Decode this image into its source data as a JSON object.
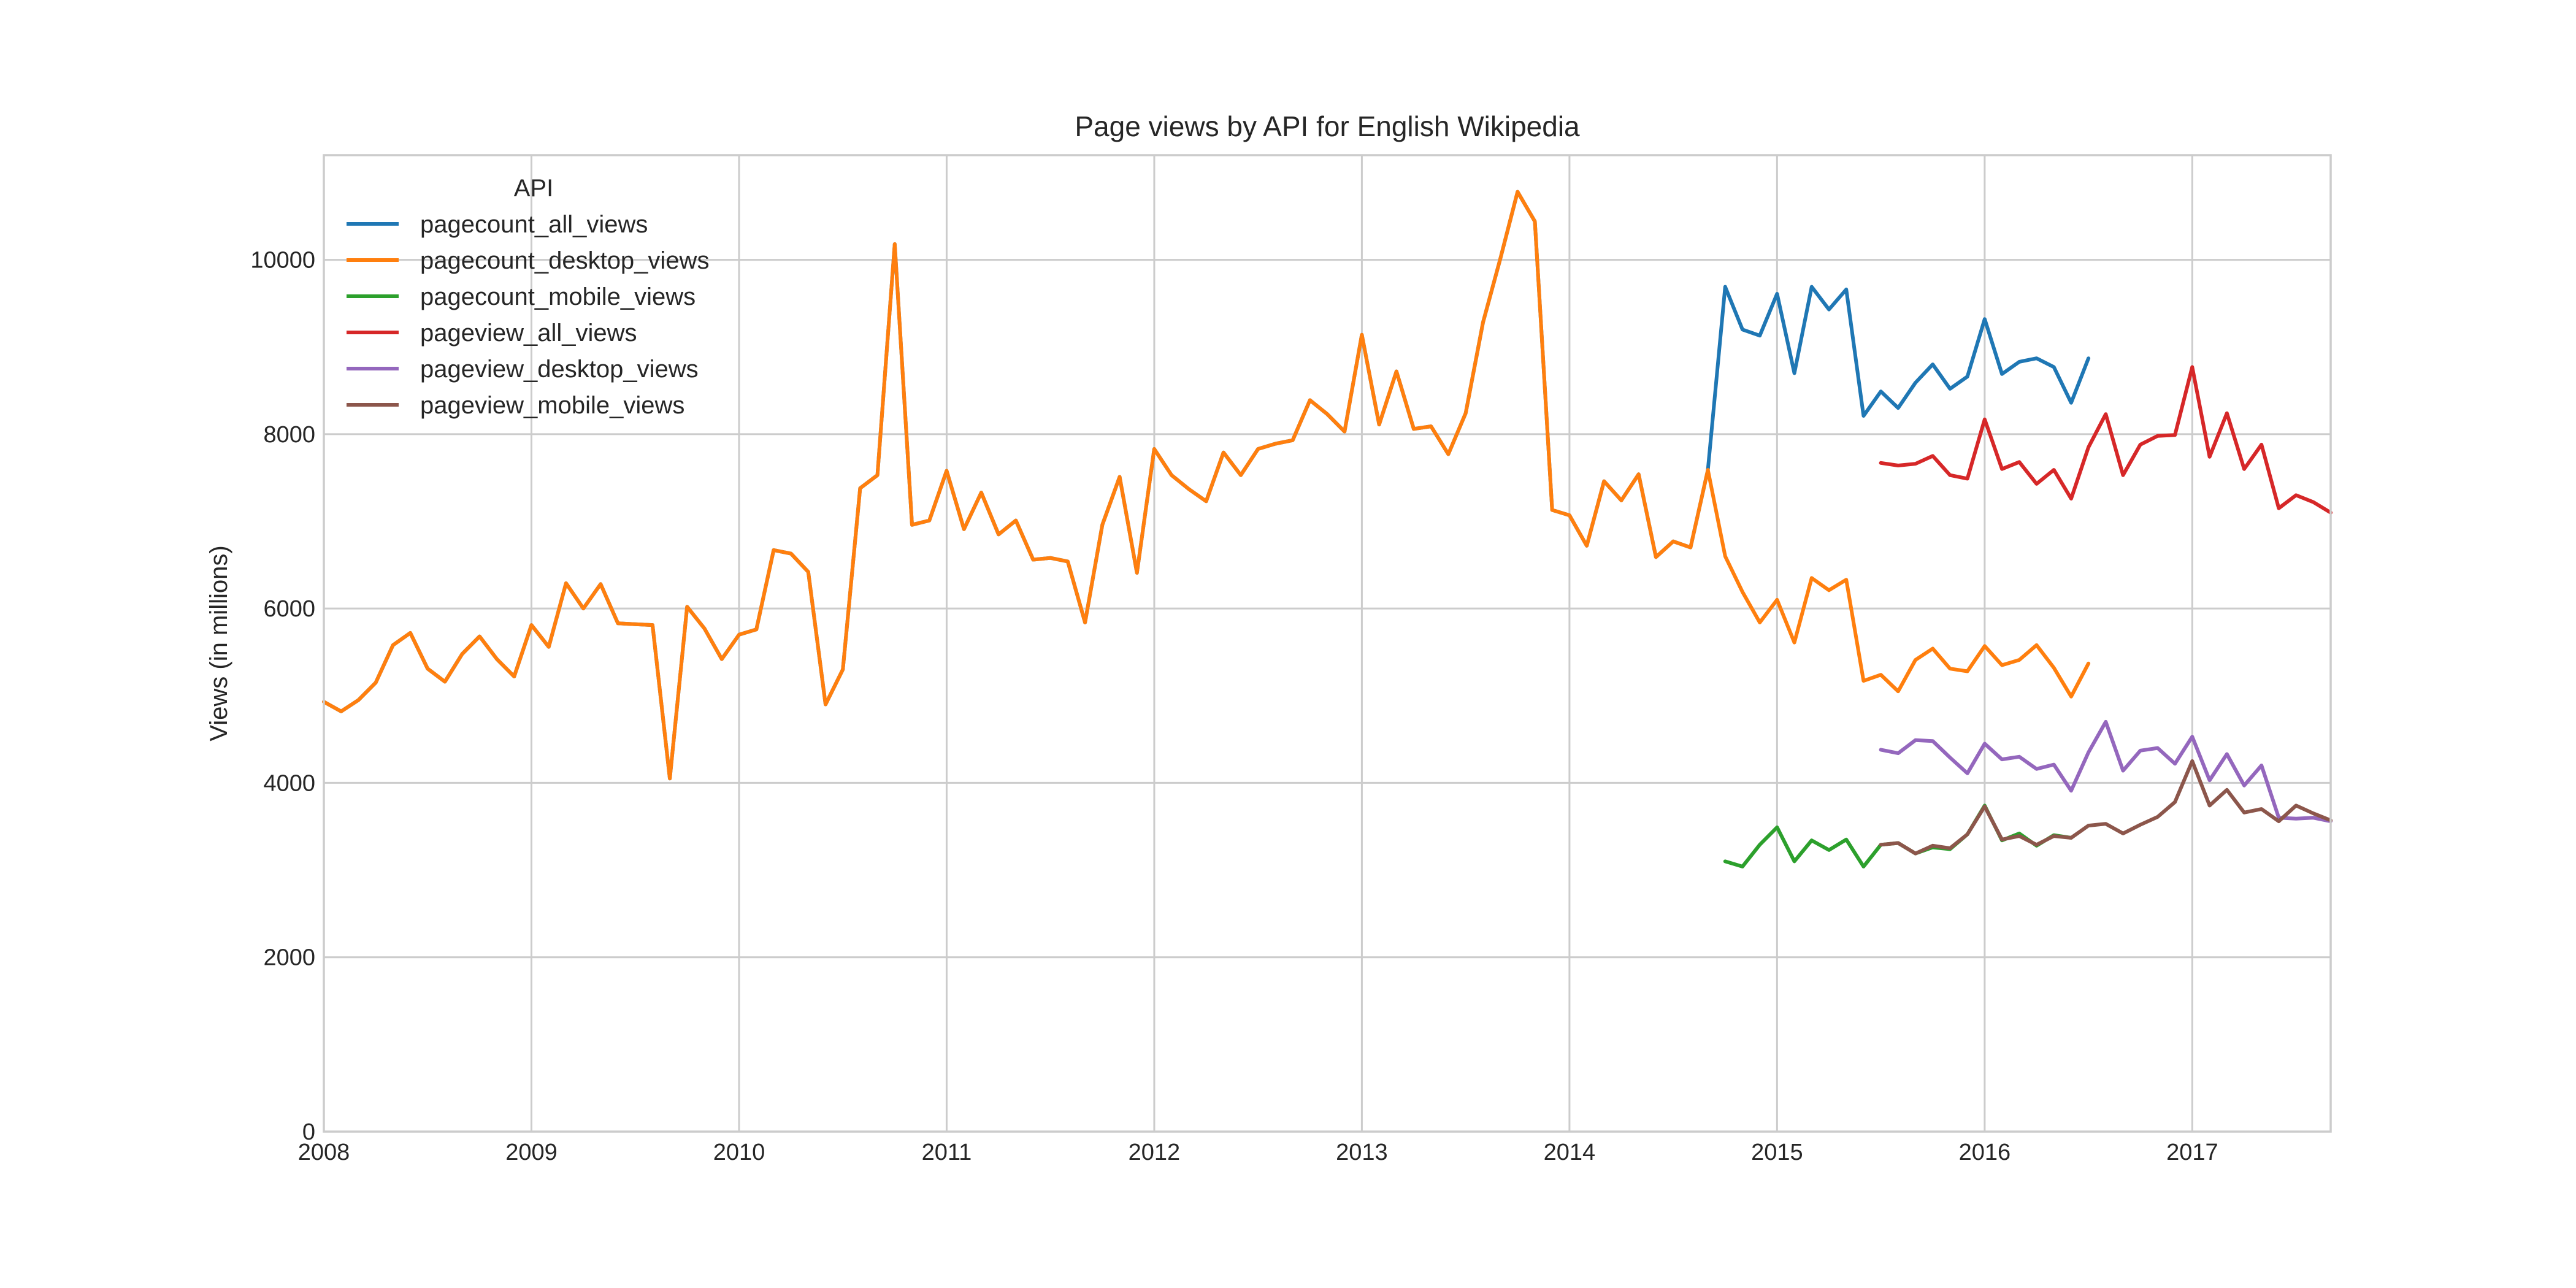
{
  "chart_data": {
    "type": "line",
    "title": "Page views by API for English Wikipedia",
    "xlabel": "",
    "ylabel": "Views (in millions)",
    "xlim": [
      "2008-01",
      "2017-09"
    ],
    "ylim": [
      0,
      11200
    ],
    "x_ticks": [
      "2008",
      "2009",
      "2010",
      "2011",
      "2012",
      "2013",
      "2014",
      "2015",
      "2016",
      "2017"
    ],
    "y_ticks": [
      0,
      2000,
      4000,
      6000,
      8000,
      10000
    ],
    "grid": true,
    "legend": {
      "title": "API",
      "placement": "top-left"
    },
    "series": [
      {
        "name": "pagecount_all_views",
        "color": "#1f77b4",
        "start": "2008-01",
        "values": [
          4930,
          4820,
          4950,
          5150,
          5580,
          5720,
          5310,
          5160,
          5480,
          5680,
          5420,
          5220,
          5810,
          5560,
          6290,
          6000,
          6280,
          5830,
          5820,
          5810,
          4050,
          6020,
          5770,
          5420,
          5700,
          5760,
          6670,
          6630,
          6420,
          4900,
          5300,
          7380,
          7530,
          10180,
          6960,
          7010,
          7580,
          6910,
          7330,
          6850,
          7010,
          6560,
          6580,
          6540,
          5840,
          6960,
          7510,
          6410,
          7830,
          7530,
          7370,
          7230,
          7790,
          7530,
          7830,
          7890,
          7930,
          8390,
          8230,
          8030,
          9140,
          8110,
          8720,
          8060,
          8090,
          7770,
          8240,
          9280,
          10010,
          10780,
          10440,
          7130,
          7070,
          6720,
          7460,
          7240,
          7540,
          6590,
          6770,
          6700,
          7590,
          9690,
          9200,
          9130,
          9610,
          8700,
          9690,
          9430,
          9660,
          8210,
          8490,
          8300,
          8590,
          8800,
          8520,
          8660,
          9320,
          8690,
          8830,
          8870,
          8770,
          8360,
          8870
        ]
      },
      {
        "name": "pagecount_desktop_views",
        "color": "#ff7f0e",
        "start": "2008-01",
        "values": [
          4930,
          4820,
          4950,
          5150,
          5580,
          5720,
          5310,
          5160,
          5480,
          5680,
          5420,
          5220,
          5810,
          5560,
          6290,
          6000,
          6280,
          5830,
          5820,
          5810,
          4050,
          6020,
          5770,
          5420,
          5700,
          5760,
          6670,
          6630,
          6420,
          4900,
          5300,
          7380,
          7530,
          10180,
          6960,
          7010,
          7580,
          6910,
          7330,
          6850,
          7010,
          6560,
          6580,
          6540,
          5840,
          6960,
          7510,
          6410,
          7830,
          7530,
          7370,
          7230,
          7790,
          7530,
          7830,
          7890,
          7930,
          8390,
          8230,
          8030,
          9140,
          8110,
          8720,
          8060,
          8090,
          7770,
          8240,
          9280,
          10010,
          10780,
          10440,
          7130,
          7070,
          6720,
          7460,
          7240,
          7540,
          6590,
          6770,
          6700,
          7590,
          6600,
          6190,
          5840,
          6100,
          5610,
          6350,
          6210,
          6330,
          5170,
          5240,
          5050,
          5410,
          5540,
          5310,
          5280,
          5570,
          5350,
          5410,
          5580,
          5320,
          4990,
          5370
        ]
      },
      {
        "name": "pagecount_mobile_views",
        "color": "#2ca02c",
        "start": "2014-10",
        "values": [
          3100,
          3040,
          3290,
          3490,
          3100,
          3340,
          3230,
          3350,
          3040,
          3290,
          3310,
          3190,
          3260,
          3240,
          3410,
          3740,
          3340,
          3420,
          3280,
          3400,
          3370
        ]
      },
      {
        "name": "pageview_all_views",
        "color": "#d62728",
        "start": "2015-07",
        "values": [
          7670,
          7640,
          7660,
          7750,
          7530,
          7490,
          8170,
          7600,
          7680,
          7430,
          7590,
          7260,
          7850,
          8230,
          7530,
          7880,
          7980,
          7990,
          8770,
          7740,
          8240,
          7600,
          7880,
          7150,
          7300,
          7220,
          7100
        ]
      },
      {
        "name": "pageview_desktop_views",
        "color": "#9467bd",
        "start": "2015-07",
        "values": [
          4380,
          4340,
          4490,
          4480,
          4290,
          4110,
          4450,
          4270,
          4300,
          4160,
          4210,
          3910,
          4350,
          4700,
          4140,
          4370,
          4400,
          4220,
          4530,
          4030,
          4330,
          3970,
          4200,
          3600,
          3590,
          3600,
          3560
        ]
      },
      {
        "name": "pageview_mobile_views",
        "color": "#8c564b",
        "start": "2015-07",
        "values": [
          3290,
          3310,
          3190,
          3280,
          3250,
          3410,
          3730,
          3350,
          3390,
          3290,
          3390,
          3370,
          3510,
          3530,
          3420,
          3520,
          3610,
          3780,
          4250,
          3740,
          3920,
          3660,
          3700,
          3560,
          3740,
          3650,
          3570
        ]
      }
    ]
  }
}
